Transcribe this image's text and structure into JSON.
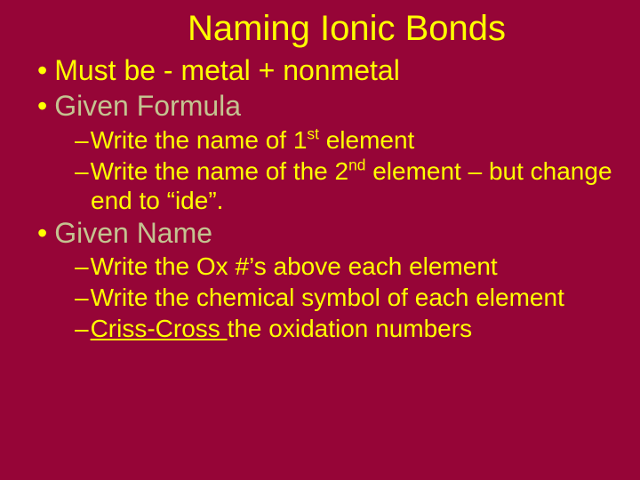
{
  "colors": {
    "background": "#960537",
    "text_primary": "#ffff00",
    "text_dim": "#c4c390"
  },
  "title": "Naming Ionic Bonds",
  "bullets": {
    "b1": {
      "marker": "•",
      "text": "Must be -   metal + nonmetal"
    },
    "b2": {
      "marker": "•",
      "text": "Given Formula"
    },
    "b3": {
      "dash": "–",
      "pre": "Write the name of 1",
      "sup": "st",
      "post": " element"
    },
    "b4": {
      "dash": "–",
      "pre": "Write the name of the 2",
      "sup": "nd",
      "post": " element – but change end to “ide”."
    },
    "b5": {
      "marker": "•",
      "text": "Given Name"
    },
    "b6": {
      "dash": "–",
      "text": "Write the Ox #’s above each element"
    },
    "b7": {
      "dash": "–",
      "text": "Write the chemical symbol of each element"
    },
    "b8": {
      "dash": "–",
      "underlined": "Criss-Cross ",
      "rest": "the oxidation numbers"
    }
  }
}
